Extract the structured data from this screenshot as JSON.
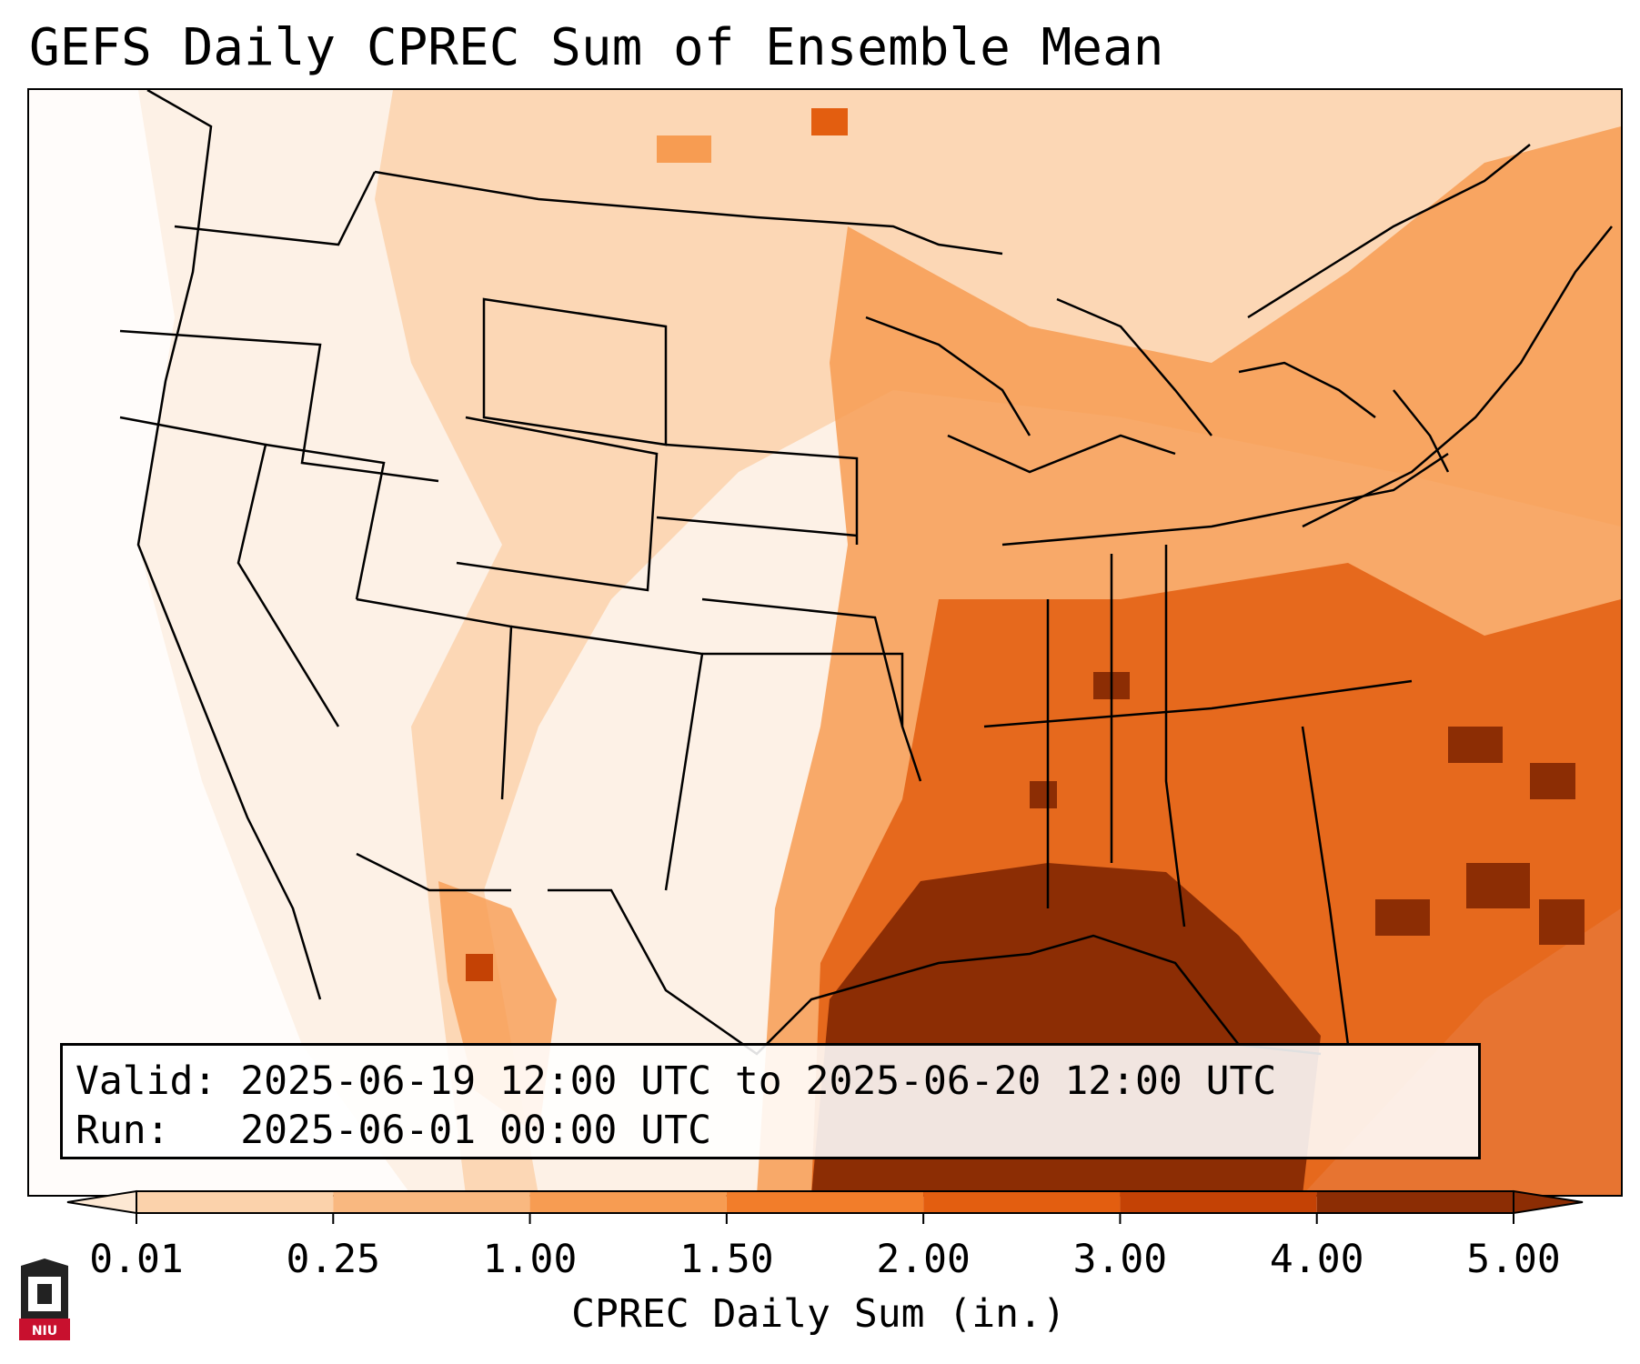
{
  "title": "GEFS Daily CPREC Sum of Ensemble Mean",
  "info": {
    "valid_label": "Valid:",
    "valid_value": "2025-06-19 12:00 UTC to 2025-06-20 12:00 UTC",
    "run_label": "Run:",
    "run_value": "2025-06-01 00:00 UTC"
  },
  "colorbar": {
    "label": "CPREC Daily Sum (in.)",
    "ticks": [
      "0.01",
      "0.25",
      "1.00",
      "1.50",
      "2.00",
      "3.00",
      "4.00",
      "5.00"
    ],
    "colors": [
      "#fde8d3",
      "#fbd2ab",
      "#f9b880",
      "#f79c52",
      "#f27d2a",
      "#e35e10",
      "#c44205",
      "#8c2d04"
    ]
  },
  "logo_text": "NIU",
  "colors": {
    "precip_heavy": "#8c2d04",
    "precip_high": "#e35e10",
    "precip_mid": "#f79c52",
    "precip_low": "#fbd2ab",
    "precip_trace": "#fdf1e6"
  }
}
